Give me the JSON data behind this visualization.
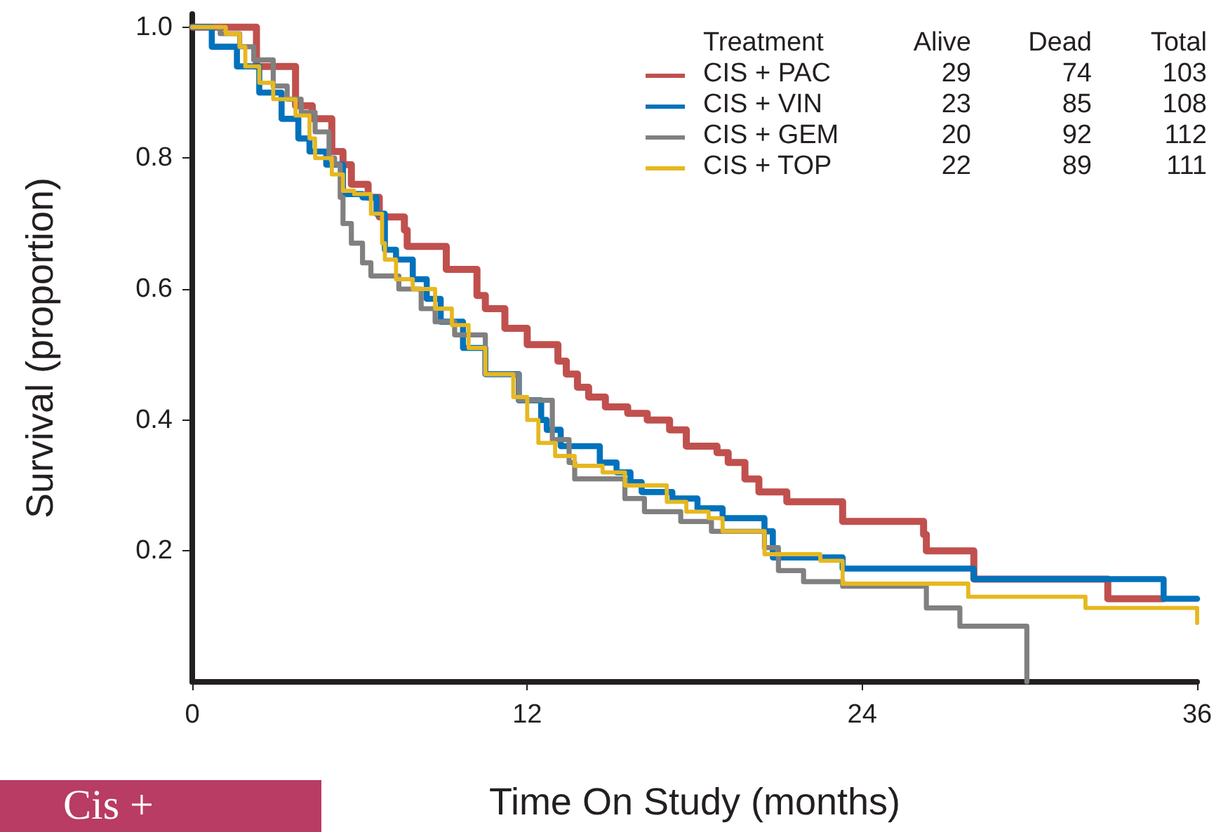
{
  "chart_data": {
    "type": "step",
    "xlabel": "Time On Study (months)",
    "ylabel": "Survival (proportion)",
    "legend_title": "Treatment",
    "annotations": [
      "Alive",
      "Dead",
      "Total",
      "29",
      "74",
      "103",
      "23",
      "85",
      "108",
      "20",
      "92",
      "112",
      "22",
      "89",
      "111",
      "Cis +"
    ],
    "xlim": [
      0,
      36
    ],
    "xticks": [
      0,
      12,
      24,
      36
    ],
    "ylim": [
      0,
      1.02
    ],
    "yticks": [
      0.2,
      0.4,
      0.6,
      0.8,
      {
        "value": 1,
        "label": "1.0"
      }
    ],
    "grid": false,
    "legend": "top right",
    "marker": "none",
    "line_style": "solid",
    "series": [
      {
        "name": "CIS + PAC",
        "color": "#c0504d",
        "x": [
          0,
          2.3,
          3.7,
          4.3,
          5,
          5.4,
          5.7,
          6.3,
          6.7,
          7.6,
          7.7,
          9.1,
          10.2,
          10.5,
          11.2,
          12,
          13.1,
          13.4,
          13.8,
          14.2,
          14.8,
          15.6,
          16.3,
          17.1,
          17.7,
          18.8,
          19.2,
          19.8,
          20.3,
          21.3,
          23.3,
          26.2,
          26.3,
          28,
          32.8,
          34.8
        ],
        "values": [
          1,
          0.94,
          0.88,
          0.86,
          0.81,
          0.79,
          0.76,
          0.74,
          0.71,
          0.69,
          0.665,
          0.63,
          0.59,
          0.57,
          0.54,
          0.515,
          0.49,
          0.47,
          0.45,
          0.435,
          0.42,
          0.41,
          0.4,
          0.385,
          0.36,
          0.35,
          0.335,
          0.31,
          0.29,
          0.275,
          0.245,
          0.225,
          0.2,
          0.157,
          0.127,
          0.127
        ]
      },
      {
        "name": "CIS + VIN",
        "color": "#0072bc",
        "x": [
          0,
          0.7,
          1.6,
          2.4,
          3.2,
          3.8,
          4.2,
          4.8,
          5.4,
          6.1,
          6.6,
          6.9,
          7.3,
          7.9,
          8.4,
          8.9,
          9.7,
          10.5,
          11.7,
          12.5,
          12.7,
          13.2,
          14.6,
          15.2,
          15.7,
          16.1,
          17.2,
          18.1,
          19,
          20.5,
          20.8,
          23.3,
          28,
          34.8,
          36
        ],
        "values": [
          1,
          0.97,
          0.94,
          0.9,
          0.86,
          0.83,
          0.81,
          0.79,
          0.745,
          0.74,
          0.715,
          0.66,
          0.645,
          0.615,
          0.585,
          0.55,
          0.51,
          0.47,
          0.43,
          0.4,
          0.385,
          0.36,
          0.335,
          0.32,
          0.305,
          0.29,
          0.28,
          0.265,
          0.25,
          0.23,
          0.19,
          0.173,
          0.157,
          0.127,
          0.127
        ]
      },
      {
        "name": "CIS + GEM",
        "color": "#808080",
        "x": [
          0,
          1,
          1.7,
          2.2,
          2.9,
          3.4,
          3.9,
          4.4,
          4.9,
          5.1,
          5.3,
          5.4,
          5.7,
          6.1,
          6.4,
          7.4,
          8.2,
          8.7,
          9.4,
          10.5,
          11.7,
          12.9,
          13.5,
          13.7,
          15.5,
          16.2,
          17.5,
          18.6,
          20.5,
          21,
          21.9,
          23.3,
          26.3,
          27.5,
          29.9,
          29.9
        ],
        "values": [
          1,
          0.99,
          0.97,
          0.95,
          0.91,
          0.89,
          0.87,
          0.84,
          0.8,
          0.79,
          0.74,
          0.7,
          0.67,
          0.64,
          0.62,
          0.6,
          0.57,
          0.55,
          0.53,
          0.47,
          0.43,
          0.37,
          0.335,
          0.31,
          0.28,
          0.26,
          0.245,
          0.23,
          0.205,
          0.17,
          0.153,
          0.146,
          0.113,
          0.085,
          0.085,
          0
        ]
      },
      {
        "name": "CIS + TOP",
        "color": "#e6b820",
        "x": [
          0,
          1.2,
          1.7,
          1.9,
          2.4,
          2.9,
          3.7,
          4.2,
          4.4,
          5,
          5.4,
          5.8,
          6.4,
          6.8,
          6.9,
          7.3,
          7.9,
          8.7,
          9.3,
          9.9,
          10.5,
          11.5,
          12,
          12.4,
          13,
          13.7,
          14.7,
          15.5,
          17,
          17.7,
          18.5,
          19,
          20.5,
          22.5,
          23.3,
          27.8,
          32,
          36
        ],
        "values": [
          1,
          0.99,
          0.97,
          0.94,
          0.915,
          0.89,
          0.865,
          0.83,
          0.8,
          0.775,
          0.75,
          0.745,
          0.715,
          0.67,
          0.645,
          0.615,
          0.6,
          0.57,
          0.545,
          0.51,
          0.47,
          0.435,
          0.4,
          0.365,
          0.345,
          0.33,
          0.32,
          0.3,
          0.275,
          0.26,
          0.25,
          0.23,
          0.195,
          0.185,
          0.15,
          0.13,
          0.113,
          0.09
        ]
      }
    ]
  }
}
